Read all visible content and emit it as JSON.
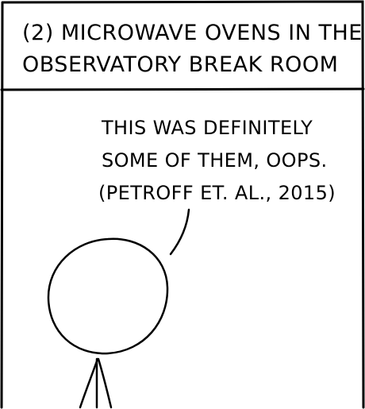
{
  "caption": {
    "line1": "(2) MICROWAVE OVENS IN THE",
    "line2": "OBSERVATORY BREAK ROOM"
  },
  "speech": {
    "line1": "THIS WAS DEFINITELY",
    "line2": "SOME OF THEM, OOPS.",
    "line3": "(PETROFF ET. AL., 2015)"
  },
  "colors": {
    "ink": "#000000",
    "background": "#ffffff"
  }
}
